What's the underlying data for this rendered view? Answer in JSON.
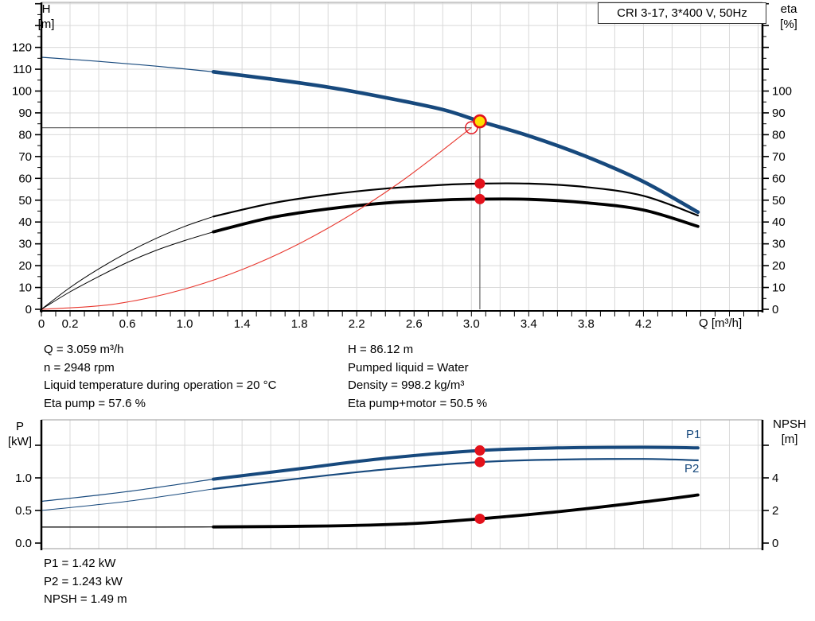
{
  "title_box": "CRI 3-17, 3*400 V, 50Hz",
  "axis_titles": {
    "top_left_1": "H",
    "top_left_2": "[m]",
    "top_right_1": "eta",
    "top_right_2": "[%]",
    "bottom_left_1": "P",
    "bottom_left_2": "[kW]",
    "bottom_right_1": "NPSH",
    "bottom_right_2": "[m]",
    "x_label": "Q [m³/h]"
  },
  "operating_point_info": {
    "left": [
      "Q = 3.059 m³/h",
      "n = 2948 rpm",
      "Liquid temperature during operation = 20 °C",
      "Eta pump = 57.6 %"
    ],
    "right": [
      "H = 86.12 m",
      "Pumped liquid = Water",
      "Density = 998.2 kg/m³",
      "Eta pump+motor = 50.5 %"
    ]
  },
  "power_info": [
    "P1 = 1.42 kW",
    "P2 = 1.243 kW",
    "NPSH = 1.49 m"
  ],
  "colors": {
    "blue": "#17497d",
    "black": "#000000",
    "red": "#e8372e",
    "marker_red": "#e3111b",
    "marker_yellow": "#ffdf00",
    "grid": "#d9d9d9",
    "frame": "#9a9a9a",
    "guide": "#666666",
    "text": "#000000"
  },
  "chart_data": [
    {
      "id": "hq-eta-chart",
      "type": "line",
      "title": "CRI 3-17, 3*400 V, 50Hz",
      "xlabel": "Q [m³/h]",
      "x_axis": {
        "min": 0,
        "max": 5.03,
        "minor_step": 0.1,
        "grid_step": 0.2,
        "label_ticks": [
          {
            "q": 0,
            "t": "0"
          },
          {
            "q": 0.2,
            "t": "0.2"
          },
          {
            "q": 0.6,
            "t": "0.6"
          },
          {
            "q": 1.0,
            "t": "1.0"
          },
          {
            "q": 1.4,
            "t": "1.4"
          },
          {
            "q": 1.8,
            "t": "1.8"
          },
          {
            "q": 2.2,
            "t": "2.2"
          },
          {
            "q": 2.6,
            "t": "2.6"
          },
          {
            "q": 3.0,
            "t": "3.0"
          },
          {
            "q": 3.4,
            "t": "3.4"
          },
          {
            "q": 3.8,
            "t": "3.8"
          },
          {
            "q": 4.2,
            "t": "4.2"
          }
        ]
      },
      "left_axis": {
        "label": "H",
        "unit": "[m]",
        "min": 0,
        "max": 140,
        "minor_step": 5,
        "labels": [
          {
            "v": 0,
            "t": "0"
          },
          {
            "v": 10,
            "t": "10"
          },
          {
            "v": 20,
            "t": "20"
          },
          {
            "v": 30,
            "t": "30"
          },
          {
            "v": 40,
            "t": "40"
          },
          {
            "v": 50,
            "t": "50"
          },
          {
            "v": 60,
            "t": "60"
          },
          {
            "v": 70,
            "t": "70"
          },
          {
            "v": 80,
            "t": "80"
          },
          {
            "v": 90,
            "t": "90"
          },
          {
            "v": 100,
            "t": "100"
          },
          {
            "v": 110,
            "t": "110"
          },
          {
            "v": 120,
            "t": "120"
          }
        ]
      },
      "right_axis": {
        "label": "eta",
        "unit": "[%]",
        "min": 0,
        "max": 140,
        "minor_step": 5,
        "labels": [
          {
            "v": 0,
            "t": "0"
          },
          {
            "v": 10,
            "t": "10"
          },
          {
            "v": 20,
            "t": "20"
          },
          {
            "v": 30,
            "t": "30"
          },
          {
            "v": 40,
            "t": "40"
          },
          {
            "v": 50,
            "t": "50"
          },
          {
            "v": 60,
            "t": "60"
          },
          {
            "v": 70,
            "t": "70"
          },
          {
            "v": 80,
            "t": "80"
          },
          {
            "v": 90,
            "t": "90"
          },
          {
            "v": 100,
            "t": "100"
          }
        ]
      },
      "series": [
        {
          "name": "head-curve-extension",
          "color": "blue",
          "width": 1.2,
          "axis": "left",
          "points": [
            [
              0,
              115.5
            ],
            [
              0.4,
              113.6
            ],
            [
              0.8,
              111.4
            ],
            [
              1.2,
              108.8
            ]
          ]
        },
        {
          "name": "head-curve",
          "color": "blue",
          "width": 4.6,
          "axis": "left",
          "points": [
            [
              1.2,
              108.8
            ],
            [
              1.6,
              105.5
            ],
            [
              2.0,
              101.8
            ],
            [
              2.4,
              97.0
            ],
            [
              2.8,
              91.5
            ],
            [
              3.059,
              86.12
            ],
            [
              3.4,
              79.5
            ],
            [
              3.8,
              70.0
            ],
            [
              4.2,
              58.5
            ],
            [
              4.58,
              44.5
            ]
          ]
        },
        {
          "name": "eta-pump-curve-extension",
          "color": "black",
          "width": 1,
          "axis": "right",
          "points": [
            [
              0,
              0
            ],
            [
              0.2,
              10
            ],
            [
              0.4,
              18.5
            ],
            [
              0.6,
              26
            ],
            [
              0.8,
              32.5
            ],
            [
              1.0,
              38
            ],
            [
              1.2,
              42.5
            ]
          ]
        },
        {
          "name": "eta-pump-curve",
          "color": "black",
          "width": 2.2,
          "axis": "right",
          "points": [
            [
              1.2,
              42.5
            ],
            [
              1.6,
              48.5
            ],
            [
              2.0,
              52.5
            ],
            [
              2.4,
              55.3
            ],
            [
              2.8,
              57.0
            ],
            [
              3.059,
              57.6
            ],
            [
              3.4,
              57.6
            ],
            [
              3.8,
              56.0
            ],
            [
              4.2,
              52.0
            ],
            [
              4.58,
              43.0
            ]
          ]
        },
        {
          "name": "eta-pump-motor-curve-extension",
          "color": "black",
          "width": 1,
          "axis": "right",
          "points": [
            [
              0,
              0
            ],
            [
              0.2,
              8
            ],
            [
              0.4,
              15
            ],
            [
              0.6,
              21.5
            ],
            [
              0.8,
              27
            ],
            [
              1.0,
              31.5
            ],
            [
              1.2,
              35.5
            ]
          ]
        },
        {
          "name": "eta-pump-motor-curve",
          "color": "black",
          "width": 3.8,
          "axis": "right",
          "points": [
            [
              1.2,
              35.5
            ],
            [
              1.6,
              42.0
            ],
            [
              2.0,
              46.0
            ],
            [
              2.4,
              48.7
            ],
            [
              2.8,
              50.1
            ],
            [
              3.059,
              50.5
            ],
            [
              3.4,
              50.4
            ],
            [
              3.8,
              48.8
            ],
            [
              4.2,
              45.5
            ],
            [
              4.58,
              38.0
            ]
          ]
        },
        {
          "name": "system-curve",
          "color": "red",
          "width": 1.1,
          "axis": "left",
          "points": [
            [
              0,
              0
            ],
            [
              0.5,
              2.3
            ],
            [
              1.0,
              9.3
            ],
            [
              1.5,
              20.9
            ],
            [
              2.0,
              37.2
            ],
            [
              2.5,
              58.1
            ],
            [
              3.0,
              83.2
            ]
          ]
        }
      ],
      "guide_lines": [
        {
          "name": "duty-head-line",
          "from": [
            0,
            83.2
          ],
          "to": [
            3.0,
            83.2
          ]
        },
        {
          "name": "duty-flow-line",
          "from": [
            3.059,
            86.12
          ],
          "to": [
            3.059,
            0
          ]
        }
      ],
      "markers": [
        {
          "name": "requested-duty-point",
          "style": "open-red",
          "q": 3.0,
          "value": 83.2,
          "axis": "left"
        },
        {
          "name": "eta-pump-point",
          "style": "red-dot",
          "q": 3.059,
          "value": 57.6,
          "axis": "right"
        },
        {
          "name": "eta-pump-motor-point",
          "style": "red-dot",
          "q": 3.059,
          "value": 50.5,
          "axis": "right"
        },
        {
          "name": "operating-point",
          "style": "yellow-red-ring",
          "q": 3.059,
          "value": 86.12,
          "axis": "left"
        }
      ]
    },
    {
      "id": "power-npsh-chart",
      "type": "line",
      "left_axis": {
        "label": "P",
        "unit": "[kW]",
        "ticks": [
          {
            "v": 0,
            "t": "0.0"
          },
          {
            "v": 0.5,
            "t": "0.5"
          },
          {
            "v": 1.0,
            "t": "1.0"
          },
          {
            "v": 1.5,
            "t": ""
          }
        ]
      },
      "right_axis": {
        "label": "NPSH",
        "unit": "[m]",
        "ticks": [
          {
            "v": 0,
            "t": "0"
          },
          {
            "v": 2,
            "t": "2"
          },
          {
            "v": 4,
            "t": "4"
          },
          {
            "v": 6,
            "t": ""
          }
        ]
      },
      "grid_values_left": [
        0.5,
        1.0,
        1.5
      ],
      "series": [
        {
          "name": "p1-curve-extension",
          "color": "blue",
          "width": 1.2,
          "axis": "left",
          "points": [
            [
              0,
              0.64
            ],
            [
              0.6,
              0.79
            ],
            [
              1.2,
              0.98
            ]
          ]
        },
        {
          "name": "p1-curve",
          "color": "blue",
          "width": 4,
          "axis": "left",
          "points": [
            [
              1.2,
              0.98
            ],
            [
              1.8,
              1.14
            ],
            [
              2.4,
              1.3
            ],
            [
              3.059,
              1.42
            ],
            [
              3.6,
              1.46
            ],
            [
              4.2,
              1.47
            ],
            [
              4.58,
              1.46
            ]
          ]
        },
        {
          "name": "p2-curve-extension",
          "color": "blue",
          "width": 1,
          "axis": "left",
          "points": [
            [
              0,
              0.5
            ],
            [
              0.6,
              0.64
            ],
            [
              1.2,
              0.83
            ]
          ]
        },
        {
          "name": "p2-curve",
          "color": "blue",
          "width": 2.2,
          "axis": "left",
          "points": [
            [
              1.2,
              0.83
            ],
            [
              1.8,
              0.99
            ],
            [
              2.4,
              1.13
            ],
            [
              3.059,
              1.243
            ],
            [
              3.6,
              1.28
            ],
            [
              4.2,
              1.29
            ],
            [
              4.58,
              1.27
            ]
          ]
        },
        {
          "name": "npsh-curve-extension",
          "color": "black",
          "width": 1.2,
          "axis": "right",
          "points": [
            [
              0,
              0.98
            ],
            [
              0.6,
              0.98
            ],
            [
              1.2,
              0.99
            ]
          ]
        },
        {
          "name": "npsh-curve",
          "color": "black",
          "width": 3.8,
          "axis": "right",
          "points": [
            [
              1.2,
              0.99
            ],
            [
              2.0,
              1.05
            ],
            [
              2.6,
              1.2
            ],
            [
              3.059,
              1.49
            ],
            [
              3.6,
              1.92
            ],
            [
              4.2,
              2.52
            ],
            [
              4.58,
              2.95
            ]
          ]
        }
      ],
      "markers": [
        {
          "name": "p1-point",
          "style": "red-dot",
          "q": 3.059,
          "value": 1.42,
          "axis": "left"
        },
        {
          "name": "p2-point",
          "style": "red-dot",
          "q": 3.059,
          "value": 1.243,
          "axis": "left"
        },
        {
          "name": "npsh-point",
          "style": "red-dot",
          "q": 3.059,
          "value": 1.49,
          "axis": "right"
        }
      ],
      "annotations": [
        {
          "text": "P1"
        },
        {
          "text": "P2"
        }
      ]
    }
  ]
}
